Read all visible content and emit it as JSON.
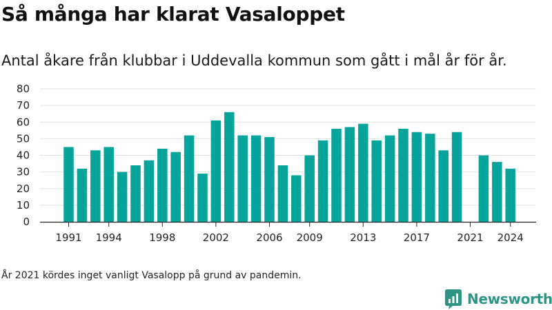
{
  "title": "Så många har klarat Vasaloppet",
  "subtitle": "Antal åkare från klubbar i Uddevalla kommun som gått i mål år för år.",
  "footnote": "År 2021 kördes inget vanligt Vasalopp på grund av pandemin.",
  "brand": {
    "name": "Newsworthy",
    "color": "#2e9486",
    "icon": "newsworthy-logo-icon"
  },
  "colors": {
    "bar": "#06a49a",
    "grid": "#e2e2e2",
    "axis": "#222222"
  },
  "chart_data": {
    "type": "bar",
    "categories": [
      1991,
      1992,
      1993,
      1994,
      1995,
      1996,
      1997,
      1998,
      1999,
      2000,
      2001,
      2002,
      2003,
      2004,
      2005,
      2006,
      2007,
      2008,
      2009,
      2010,
      2011,
      2012,
      2013,
      2014,
      2015,
      2016,
      2017,
      2018,
      2019,
      2020,
      2021,
      2022,
      2023,
      2024
    ],
    "values": [
      45,
      32,
      43,
      45,
      30,
      34,
      37,
      44,
      42,
      52,
      29,
      61,
      66,
      52,
      52,
      51,
      34,
      28,
      40,
      49,
      56,
      57,
      59,
      49,
      52,
      56,
      54,
      53,
      43,
      54,
      null,
      40,
      36,
      32
    ],
    "x_tick_labels": [
      1991,
      1994,
      1998,
      2002,
      2006,
      2009,
      2013,
      2017,
      2021,
      2024
    ],
    "y_ticks": [
      0,
      10,
      20,
      30,
      40,
      50,
      60,
      70,
      80
    ],
    "ylim": [
      0,
      80
    ],
    "grid": true,
    "legend": "none"
  }
}
